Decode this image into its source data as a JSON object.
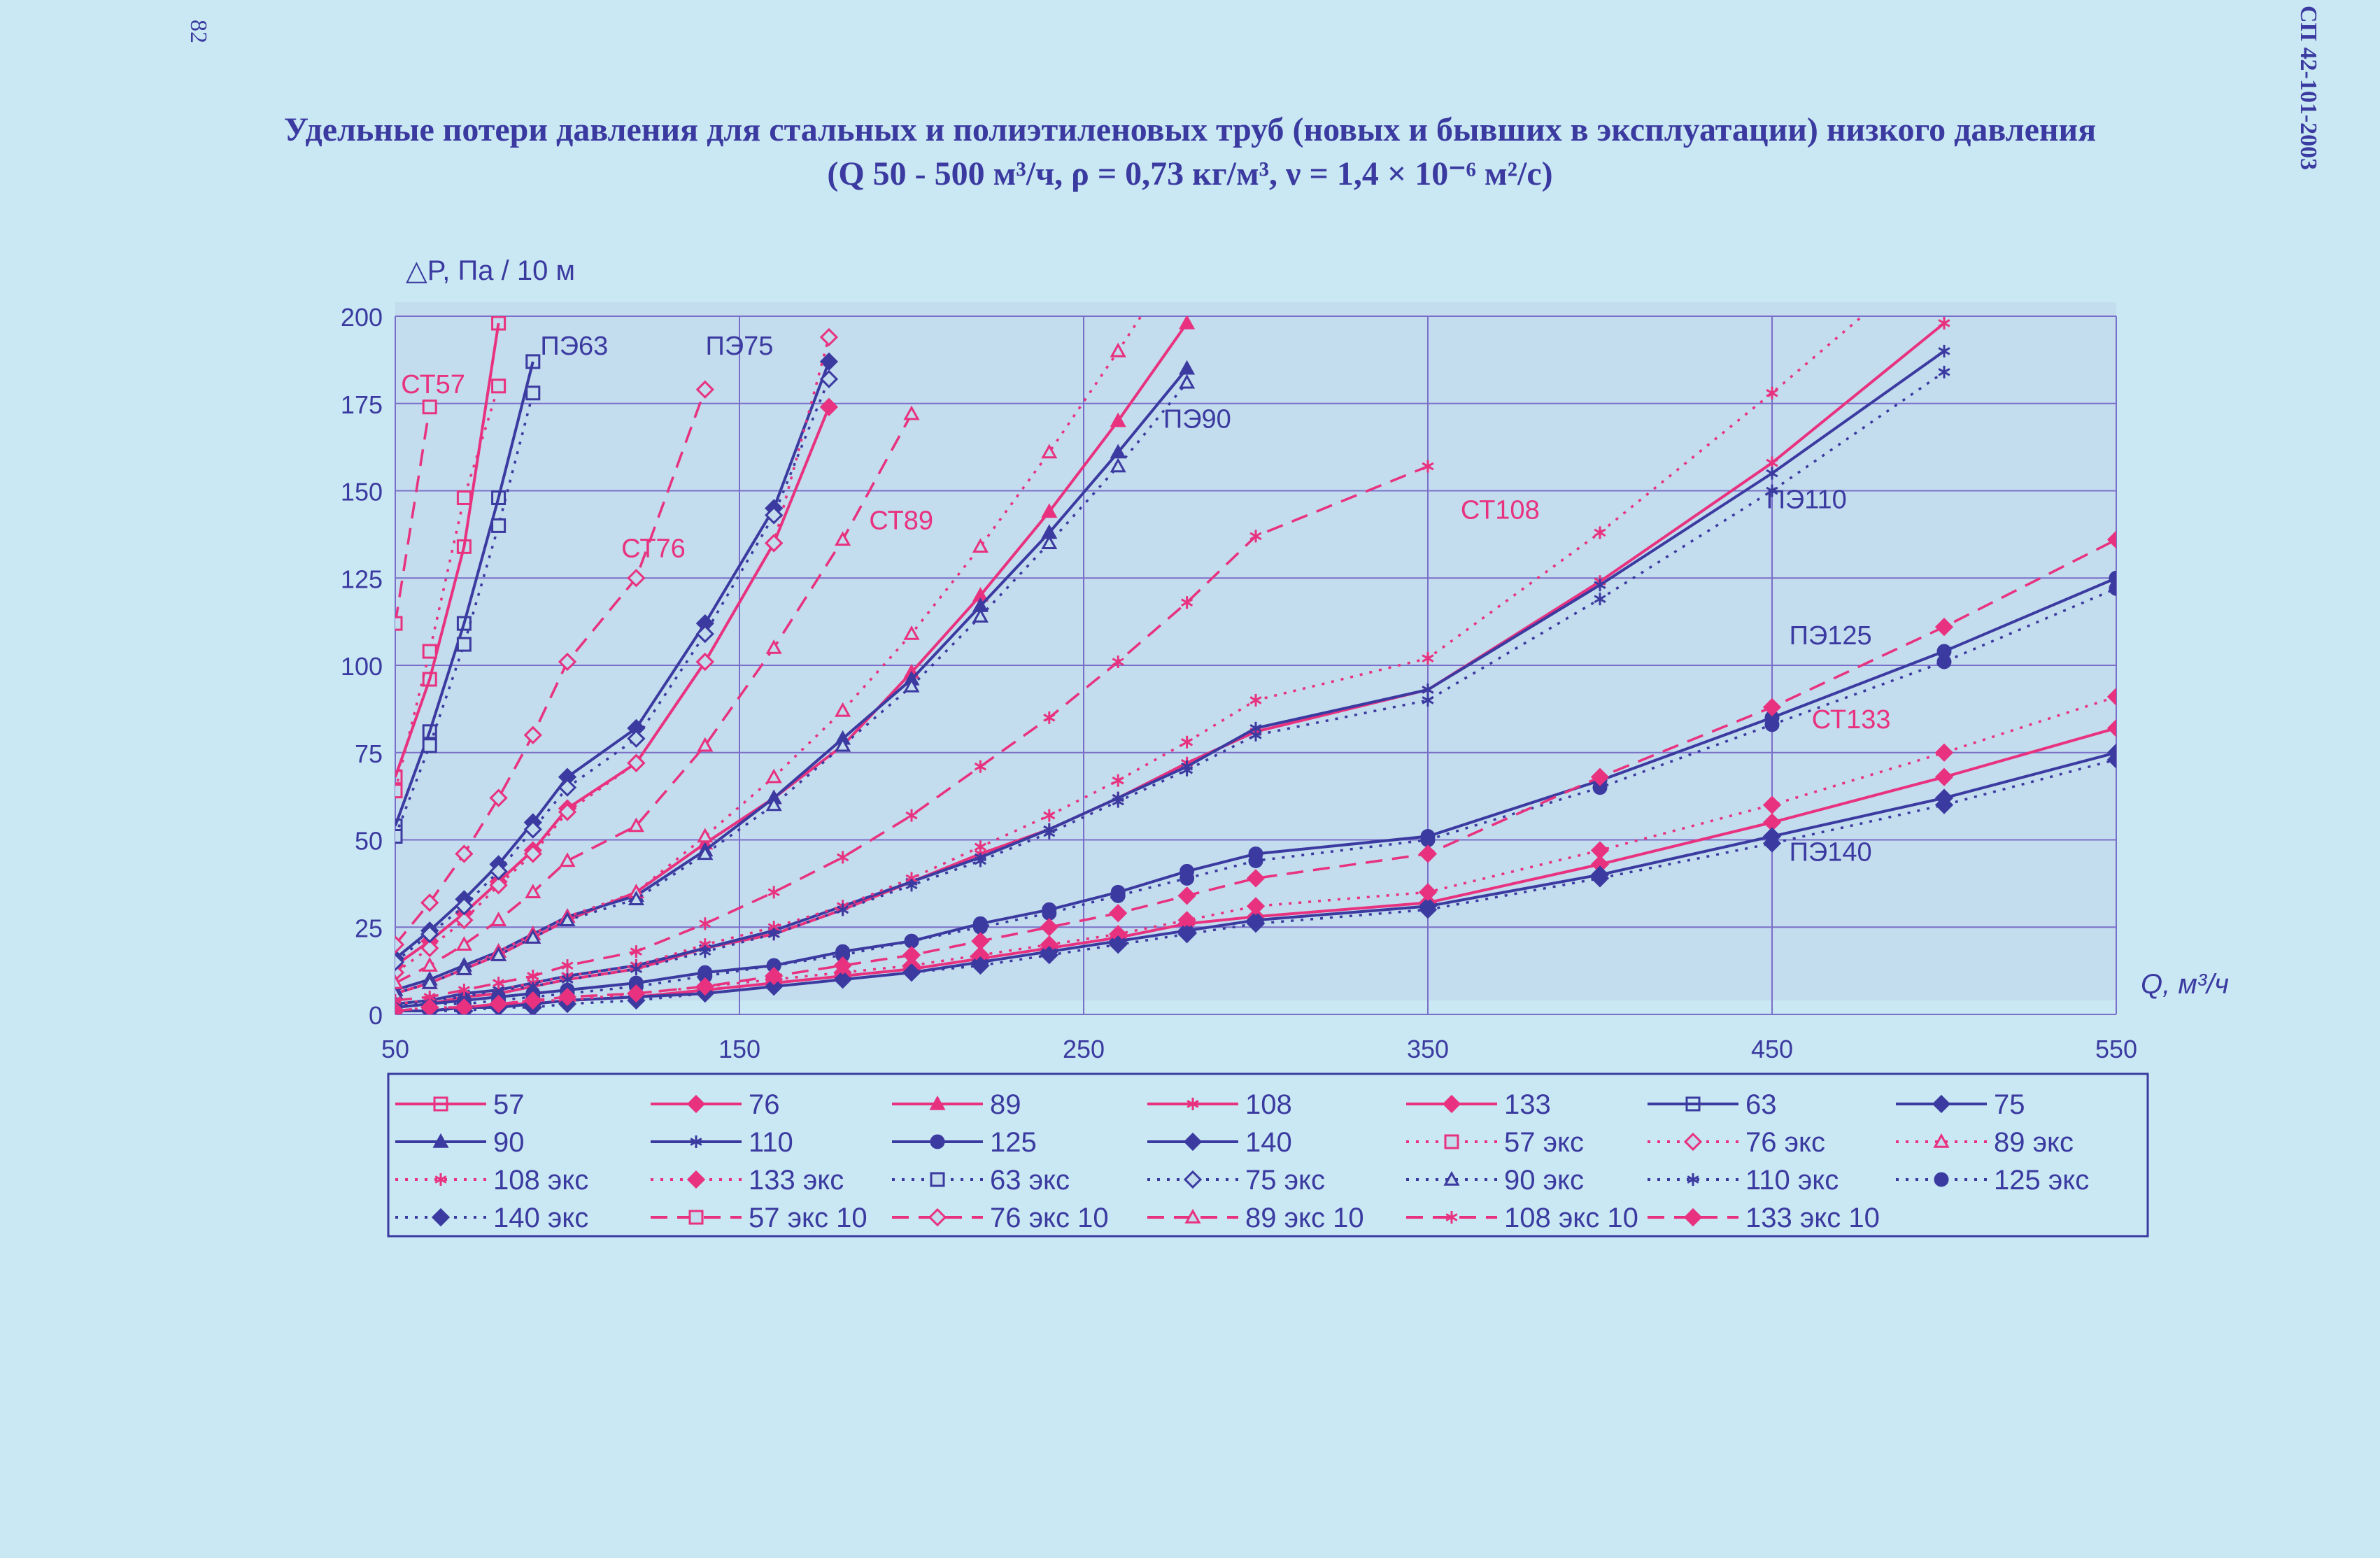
{
  "page": {
    "number": "82",
    "doc_code": "СП 42-101-2003",
    "title_line1": "Удельные потери давления для стальных и полиэтиленовых труб (новых и бывших в эксплуатации) низкого давления",
    "title_line2": "(Q 50 - 500 м³/ч, ρ = 0,73 кг/м³, ν = 1,4 × 10⁻⁶ м²/с)"
  },
  "chart_data": {
    "type": "line",
    "title": "Удельные потери давления для стальных и полиэтиленовых труб (новых и бывших в эксплуатации) низкого давления",
    "xlabel": "Q, м³/ч",
    "ylabel": "△P, Па / 10 м",
    "xlim": [
      50,
      550
    ],
    "ylim": [
      0,
      200
    ],
    "x_ticks": [
      50,
      150,
      250,
      350,
      450,
      550
    ],
    "y_ticks": [
      0,
      25,
      50,
      75,
      100,
      125,
      150,
      175,
      200
    ],
    "grid": true,
    "legend_position": "bottom",
    "colors": {
      "steel": "#e8327f",
      "pe": "#3b3aa0",
      "plot_bg": "#c3dcee",
      "grid": "#7a6fc8"
    },
    "series": [
      {
        "name": "57",
        "group": "steel",
        "dash": "solid",
        "marker": "square",
        "x": [
          50,
          60,
          70,
          80
        ],
        "y": [
          68,
          96,
          134,
          198
        ]
      },
      {
        "name": "76",
        "group": "steel",
        "dash": "solid",
        "marker": "diamond",
        "x": [
          50,
          60,
          70,
          80,
          90,
          100,
          120,
          140,
          160,
          176
        ],
        "y": [
          14,
          21,
          29,
          38,
          47,
          59,
          72,
          101,
          135,
          174
        ]
      },
      {
        "name": "89",
        "group": "steel",
        "dash": "solid",
        "marker": "triangle",
        "x": [
          50,
          60,
          70,
          80,
          90,
          100,
          120,
          140,
          160,
          180,
          200,
          220,
          240,
          260,
          280
        ],
        "y": [
          6,
          9,
          13,
          17,
          22,
          27,
          35,
          49,
          62,
          77,
          98,
          120,
          144,
          170,
          198
        ]
      },
      {
        "name": "108",
        "group": "steel",
        "dash": "solid",
        "marker": "asterisk",
        "x": [
          50,
          60,
          70,
          80,
          90,
          100,
          120,
          140,
          160,
          180,
          200,
          220,
          240,
          260,
          280,
          300,
          350,
          400,
          450,
          500
        ],
        "y": [
          2,
          3,
          5,
          6,
          8,
          10,
          13,
          19,
          23,
          30,
          38,
          46,
          53,
          62,
          72,
          81,
          93,
          124,
          158,
          198
        ]
      },
      {
        "name": "133",
        "group": "steel",
        "dash": "solid",
        "marker": "diamond-filled",
        "x": [
          50,
          60,
          70,
          80,
          90,
          100,
          120,
          140,
          160,
          180,
          200,
          220,
          240,
          260,
          280,
          300,
          350,
          400,
          450,
          500,
          550
        ],
        "y": [
          1,
          1,
          2,
          3,
          3,
          4,
          5,
          7,
          9,
          11,
          13,
          16,
          19,
          22,
          26,
          28,
          32,
          43,
          55,
          68,
          82
        ]
      },
      {
        "name": "63",
        "group": "pe",
        "dash": "solid",
        "marker": "square",
        "x": [
          50,
          60,
          70,
          80,
          90
        ],
        "y": [
          54,
          81,
          112,
          148,
          187
        ]
      },
      {
        "name": "75",
        "group": "pe",
        "dash": "solid",
        "marker": "diamond",
        "x": [
          50,
          60,
          70,
          80,
          90,
          100,
          120,
          140,
          160,
          176
        ],
        "y": [
          16,
          24,
          33,
          43,
          55,
          68,
          82,
          112,
          145,
          187
        ]
      },
      {
        "name": "90",
        "group": "pe",
        "dash": "solid",
        "marker": "triangle",
        "x": [
          50,
          60,
          70,
          80,
          90,
          100,
          120,
          140,
          160,
          180,
          200,
          220,
          240,
          260,
          280
        ],
        "y": [
          7,
          10,
          14,
          18,
          23,
          28,
          34,
          47,
          62,
          79,
          96,
          117,
          138,
          161,
          185
        ]
      },
      {
        "name": "110",
        "group": "pe",
        "dash": "solid",
        "marker": "asterisk",
        "x": [
          50,
          60,
          70,
          80,
          90,
          100,
          120,
          140,
          160,
          180,
          200,
          220,
          240,
          260,
          280,
          300,
          350,
          400,
          450,
          500
        ],
        "y": [
          3,
          4,
          6,
          7,
          9,
          11,
          14,
          19,
          24,
          31,
          38,
          45,
          53,
          62,
          71,
          82,
          93,
          123,
          155,
          190
        ]
      },
      {
        "name": "125",
        "group": "pe",
        "dash": "solid",
        "marker": "circle",
        "x": [
          50,
          60,
          70,
          80,
          90,
          100,
          120,
          140,
          160,
          180,
          200,
          220,
          240,
          260,
          280,
          300,
          350,
          400,
          450,
          500,
          550
        ],
        "y": [
          2,
          3,
          4,
          5,
          6,
          7,
          9,
          12,
          14,
          18,
          21,
          26,
          30,
          35,
          41,
          46,
          51,
          67,
          85,
          104,
          125
        ]
      },
      {
        "name": "140",
        "group": "pe",
        "dash": "solid",
        "marker": "diamond-filled",
        "x": [
          50,
          60,
          70,
          80,
          90,
          100,
          120,
          140,
          160,
          180,
          200,
          220,
          240,
          260,
          280,
          300,
          350,
          400,
          450,
          500,
          550
        ],
        "y": [
          1,
          1,
          2,
          2,
          3,
          4,
          5,
          6,
          8,
          10,
          12,
          15,
          18,
          21,
          24,
          27,
          31,
          40,
          51,
          62,
          75
        ]
      },
      {
        "name": "57 экс",
        "group": "steel",
        "dash": "dotted",
        "marker": "square-open",
        "x": [
          50,
          60,
          70,
          80
        ],
        "y": [
          64,
          104,
          148,
          180
        ]
      },
      {
        "name": "76 экс",
        "group": "steel",
        "dash": "dotted",
        "marker": "diamond-open",
        "x": [
          50,
          60,
          70,
          80,
          90,
          100,
          120,
          140,
          160,
          176
        ],
        "y": [
          12,
          19,
          27,
          37,
          46,
          58,
          72,
          101,
          135,
          194
        ]
      },
      {
        "name": "89 экс",
        "group": "steel",
        "dash": "dotted",
        "marker": "triangle-open",
        "x": [
          50,
          60,
          70,
          80,
          90,
          100,
          120,
          140,
          160,
          180,
          200,
          220,
          240,
          260,
          280
        ],
        "y": [
          6,
          9,
          13,
          18,
          23,
          28,
          35,
          51,
          68,
          87,
          109,
          134,
          161,
          190,
          220
        ]
      },
      {
        "name": "108 экс",
        "group": "steel",
        "dash": "dotted",
        "marker": "asterisk",
        "x": [
          50,
          60,
          70,
          80,
          90,
          100,
          120,
          140,
          160,
          180,
          200,
          220,
          240,
          260,
          280,
          300,
          350,
          400,
          450,
          500
        ],
        "y": [
          3,
          4,
          5,
          7,
          9,
          11,
          14,
          20,
          25,
          31,
          39,
          48,
          57,
          67,
          78,
          90,
          102,
          138,
          178,
          220
        ]
      },
      {
        "name": "133 экс",
        "group": "steel",
        "dash": "dotted",
        "marker": "diamond-filled",
        "x": [
          50,
          60,
          70,
          80,
          90,
          100,
          120,
          140,
          160,
          180,
          200,
          220,
          240,
          260,
          280,
          300,
          350,
          400,
          450,
          500,
          550
        ],
        "y": [
          1,
          2,
          2,
          3,
          4,
          4,
          6,
          8,
          10,
          12,
          14,
          17,
          20,
          23,
          27,
          31,
          35,
          47,
          60,
          75,
          91
        ]
      },
      {
        "name": "63 экс",
        "group": "pe",
        "dash": "dotted",
        "marker": "square-open",
        "x": [
          50,
          60,
          70,
          80,
          90
        ],
        "y": [
          51,
          77,
          106,
          140,
          178
        ]
      },
      {
        "name": "75 экс",
        "group": "pe",
        "dash": "dotted",
        "marker": "diamond-open",
        "x": [
          50,
          60,
          70,
          80,
          90,
          100,
          120,
          140,
          160,
          176
        ],
        "y": [
          15,
          23,
          31,
          41,
          53,
          65,
          79,
          109,
          143,
          182
        ]
      },
      {
        "name": "90 экс",
        "group": "pe",
        "dash": "dotted",
        "marker": "triangle-open",
        "x": [
          50,
          60,
          70,
          80,
          90,
          100,
          120,
          140,
          160,
          180,
          200,
          220,
          240,
          260,
          280
        ],
        "y": [
          6,
          9,
          13,
          17,
          22,
          27,
          33,
          46,
          60,
          77,
          94,
          114,
          135,
          157,
          181
        ]
      },
      {
        "name": "110 экс",
        "group": "pe",
        "dash": "dotted",
        "marker": "asterisk",
        "x": [
          50,
          60,
          70,
          80,
          90,
          100,
          120,
          140,
          160,
          180,
          200,
          220,
          240,
          260,
          280,
          300,
          350,
          400,
          450,
          500
        ],
        "y": [
          2,
          4,
          5,
          7,
          8,
          10,
          13,
          18,
          23,
          30,
          37,
          44,
          52,
          61,
          70,
          80,
          90,
          119,
          150,
          184
        ]
      },
      {
        "name": "125 экс",
        "group": "pe",
        "dash": "dotted",
        "marker": "circle",
        "x": [
          50,
          60,
          70,
          80,
          90,
          100,
          120,
          140,
          160,
          180,
          200,
          220,
          240,
          260,
          280,
          300,
          350,
          400,
          450,
          500,
          550
        ],
        "y": [
          2,
          3,
          3,
          4,
          5,
          6,
          8,
          11,
          14,
          17,
          21,
          25,
          29,
          34,
          39,
          44,
          50,
          65,
          83,
          101,
          122
        ]
      },
      {
        "name": "140 экс",
        "group": "pe",
        "dash": "dotted",
        "marker": "diamond-filled",
        "x": [
          50,
          60,
          70,
          80,
          90,
          100,
          120,
          140,
          160,
          180,
          200,
          220,
          240,
          260,
          280,
          300,
          350,
          400,
          450,
          500,
          550
        ],
        "y": [
          1,
          1,
          1,
          2,
          2,
          3,
          4,
          6,
          8,
          10,
          12,
          14,
          17,
          20,
          23,
          26,
          30,
          39,
          49,
          60,
          73
        ]
      },
      {
        "name": "57 экс 10",
        "group": "steel",
        "dash": "dashed",
        "marker": "square-open",
        "x": [
          50,
          60
        ],
        "y": [
          112,
          174
        ]
      },
      {
        "name": "76 экс 10",
        "group": "steel",
        "dash": "dashed",
        "marker": "diamond-open",
        "x": [
          50,
          60,
          70,
          80,
          90,
          100,
          120,
          140
        ],
        "y": [
          20,
          32,
          46,
          62,
          80,
          101,
          125,
          179
        ]
      },
      {
        "name": "89 экс 10",
        "group": "steel",
        "dash": "dashed",
        "marker": "triangle-open",
        "x": [
          50,
          60,
          70,
          80,
          90,
          100,
          120,
          140,
          160,
          180,
          200
        ],
        "y": [
          9,
          14,
          20,
          27,
          35,
          44,
          54,
          77,
          105,
          136,
          172
        ]
      },
      {
        "name": "108 экс 10",
        "group": "steel",
        "dash": "dashed",
        "marker": "asterisk",
        "x": [
          50,
          60,
          70,
          80,
          90,
          100,
          120,
          140,
          160,
          180,
          200,
          220,
          240,
          260,
          280,
          300,
          350
        ],
        "y": [
          4,
          5,
          7,
          9,
          11,
          14,
          18,
          26,
          35,
          45,
          57,
          71,
          85,
          101,
          118,
          137,
          157
        ]
      },
      {
        "name": "133 экс 10",
        "group": "steel",
        "dash": "dashed",
        "marker": "diamond-filled",
        "x": [
          50,
          60,
          70,
          80,
          90,
          100,
          120,
          140,
          160,
          180,
          200,
          220,
          240,
          260,
          280,
          300,
          350,
          400,
          450,
          500,
          550
        ],
        "y": [
          1,
          2,
          2,
          3,
          4,
          5,
          6,
          8,
          11,
          14,
          17,
          21,
          25,
          29,
          34,
          39,
          46,
          68,
          88,
          111,
          136
        ]
      }
    ],
    "annotations": [
      {
        "text": "СТ57",
        "x": 61,
        "y": 178,
        "group": "steel"
      },
      {
        "text": "ПЭ63",
        "x": 102,
        "y": 189,
        "group": "pe"
      },
      {
        "text": "ПЭ75",
        "x": 150,
        "y": 189,
        "group": "pe"
      },
      {
        "text": "СТ76",
        "x": 125,
        "y": 131,
        "group": "steel"
      },
      {
        "text": "СТ89",
        "x": 197,
        "y": 139,
        "group": "steel"
      },
      {
        "text": "ПЭ90",
        "x": 283,
        "y": 168,
        "group": "pe"
      },
      {
        "text": "СТ108",
        "x": 371,
        "y": 142,
        "group": "steel"
      },
      {
        "text": "ПЭ110",
        "x": 460,
        "y": 145,
        "group": "pe"
      },
      {
        "text": "ПЭ125",
        "x": 467,
        "y": 106,
        "group": "pe"
      },
      {
        "text": "СТ133",
        "x": 473,
        "y": 82,
        "group": "steel"
      },
      {
        "text": "ПЭ140",
        "x": 467,
        "y": 44,
        "group": "pe"
      }
    ]
  }
}
